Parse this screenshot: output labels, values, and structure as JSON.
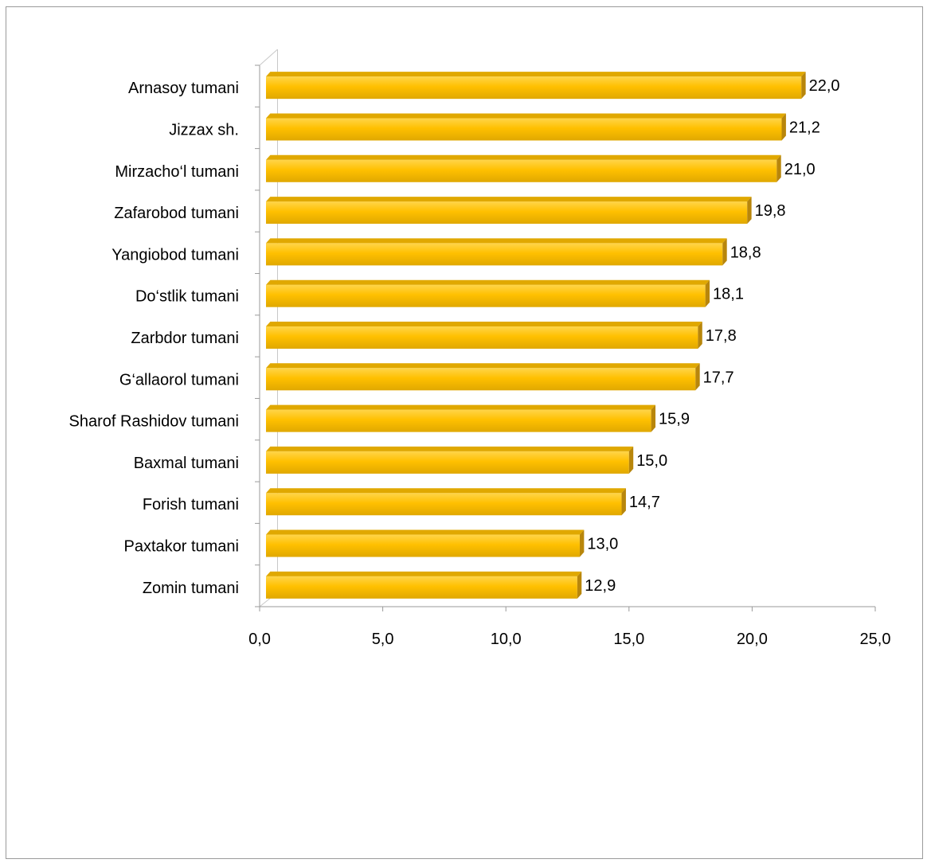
{
  "chart_data": {
    "type": "bar",
    "orientation": "horizontal",
    "style": "3d",
    "categories": [
      "Arnasoy tumani",
      "Jizzax sh.",
      "Mirzacho‘l tumani",
      "Zafarobod tumani",
      "Yangiobod tumani",
      "Do‘stlik tumani",
      "Zarbdor tumani",
      "G‘allaorol tumani",
      "Sharof Rashidov tumani",
      "Baxmal tumani",
      "Forish tumani",
      "Paxtakor tumani",
      "Zomin tumani"
    ],
    "values": [
      22.0,
      21.2,
      21.0,
      19.8,
      18.8,
      18.1,
      17.8,
      17.7,
      15.9,
      15.0,
      14.7,
      13.0,
      12.9
    ],
    "value_labels": [
      "22,0",
      "21,2",
      "21,0",
      "19,8",
      "18,8",
      "18,1",
      "17,8",
      "17,7",
      "15,9",
      "15,0",
      "14,7",
      "13,0",
      "12,9"
    ],
    "xlim": [
      0,
      25
    ],
    "xticks": [
      0,
      5,
      10,
      15,
      20,
      25
    ],
    "xtick_labels": [
      "0,0",
      "5,0",
      "10,0",
      "15,0",
      "20,0",
      "25,0"
    ],
    "title": "",
    "xlabel": "",
    "ylabel": "",
    "grid": false,
    "legend": "none",
    "colors": {
      "bar_front": "#FFC000",
      "bar_front_light": "#FFD54A",
      "bar_top": "#E0A800",
      "bar_side": "#B8860B",
      "axis": "#9a9a9a"
    }
  }
}
